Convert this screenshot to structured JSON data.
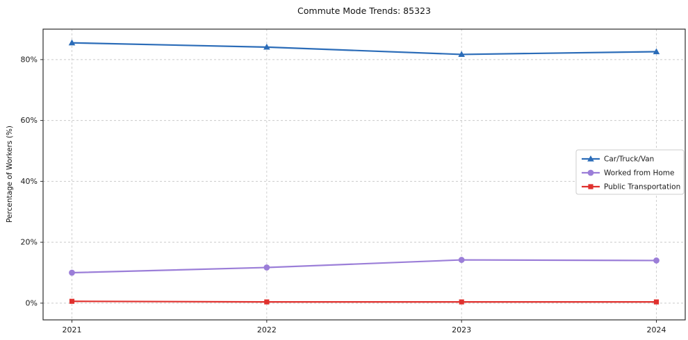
{
  "title": "Commute Mode Trends: 85323",
  "chart_data": {
    "type": "line",
    "title": "Commute Mode Trends: 85323",
    "xlabel": "",
    "ylabel": "Percentage of Workers (%)",
    "x": [
      2021,
      2022,
      2023,
      2024
    ],
    "xtick_labels": [
      "2021",
      "2022",
      "2023",
      "2024"
    ],
    "yticks": [
      0,
      20,
      40,
      60,
      80
    ],
    "ytick_labels": [
      "0%",
      "20%",
      "40%",
      "60%",
      "80%"
    ],
    "ylim": [
      -5.5,
      90
    ],
    "grid": true,
    "grid_style": "dashed",
    "legend_position": "center right",
    "series": [
      {
        "name": "Car/Truck/Van",
        "values": [
          85.5,
          84.1,
          81.7,
          82.6
        ],
        "color": "#2b6cb8",
        "marker": "triangle"
      },
      {
        "name": "Worked from Home",
        "values": [
          10.0,
          11.7,
          14.2,
          14.0
        ],
        "color": "#9b7ed8",
        "marker": "circle"
      },
      {
        "name": "Public Transportation",
        "values": [
          0.6,
          0.4,
          0.4,
          0.4
        ],
        "color": "#e0312e",
        "marker": "square"
      }
    ]
  }
}
